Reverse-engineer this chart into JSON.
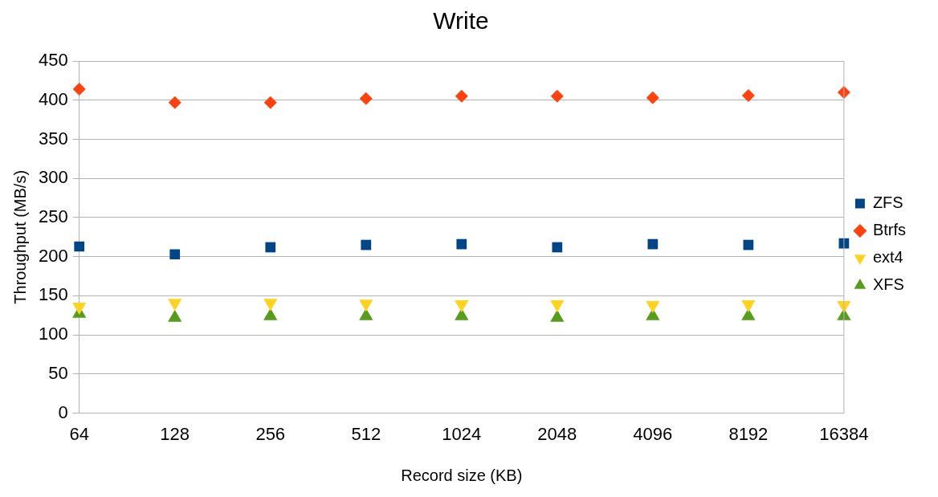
{
  "chart_data": {
    "type": "scatter",
    "title": "Write",
    "xlabel": "Record size (KB)",
    "ylabel": "Throughput (MB/s)",
    "categories": [
      "64",
      "128",
      "256",
      "512",
      "1024",
      "2048",
      "4096",
      "8192",
      "16384"
    ],
    "series": [
      {
        "name": "ZFS",
        "color": "#004586",
        "marker": "square",
        "values": [
          213,
          203,
          212,
          215,
          216,
          212,
          216,
          215,
          217
        ]
      },
      {
        "name": "Btrfs",
        "color": "#ff420e",
        "marker": "diamond",
        "values": [
          414,
          397,
          397,
          402,
          405,
          405,
          403,
          406,
          410
        ]
      },
      {
        "name": "ext4",
        "color": "#ffd320",
        "marker": "triangle-down",
        "values": [
          136,
          141,
          141,
          140,
          139,
          139,
          138,
          139,
          138
        ]
      },
      {
        "name": "XFS",
        "color": "#579d1c",
        "marker": "triangle",
        "values": [
          127,
          122,
          124,
          124,
          124,
          122,
          124,
          124,
          124
        ]
      }
    ],
    "ylim": [
      0,
      450
    ],
    "yticks": [
      0,
      50,
      100,
      150,
      200,
      250,
      300,
      350,
      400,
      450
    ],
    "grid": "y",
    "legend": "right"
  }
}
